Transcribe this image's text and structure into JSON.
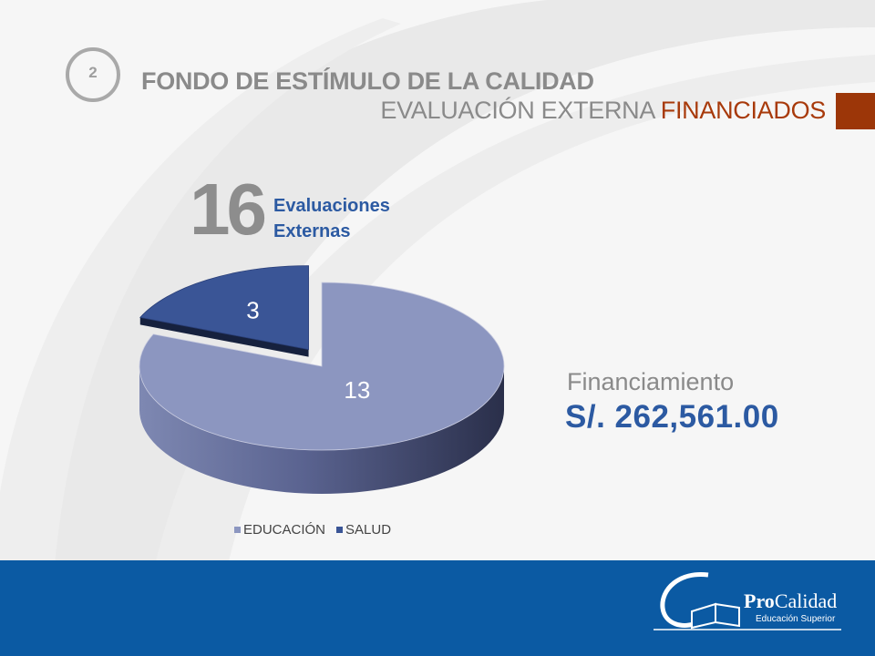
{
  "header": {
    "badge_number": "2",
    "title": "FONDO DE ESTÍMULO DE LA CALIDAD",
    "subtitle_prefix": "EVALUACIÓN EXTERNA",
    "subtitle_accent": "FINANCIADOS"
  },
  "summary": {
    "total": "16",
    "label_line1": "Evaluaciones",
    "label_line2": "Externas"
  },
  "financing": {
    "label": "Financiamiento",
    "amount": "S/. 262,561.00"
  },
  "chart_data": {
    "type": "pie",
    "categories": [
      "EDUCACIÓN",
      "SALUD"
    ],
    "values": [
      13,
      3
    ],
    "data_labels": [
      "13",
      "3"
    ],
    "exploded": true,
    "three_d": true,
    "legend": "bottom",
    "colors": {
      "EDUCACIÓN": "#8c96c0",
      "SALUD": "#3a5596"
    }
  },
  "legend": {
    "educacion": "EDUCACIÓN",
    "salud": "SALUD"
  },
  "footer": {
    "logo_name_bold": "Pro",
    "logo_name_rest": "Calidad",
    "logo_tagline": "Educación Superior"
  },
  "colors": {
    "accent_blue": "#2c5aa2",
    "accent_orange": "#9c3608",
    "footer_blue": "#0b5aa3",
    "gray_text": "#8a8a8a"
  }
}
